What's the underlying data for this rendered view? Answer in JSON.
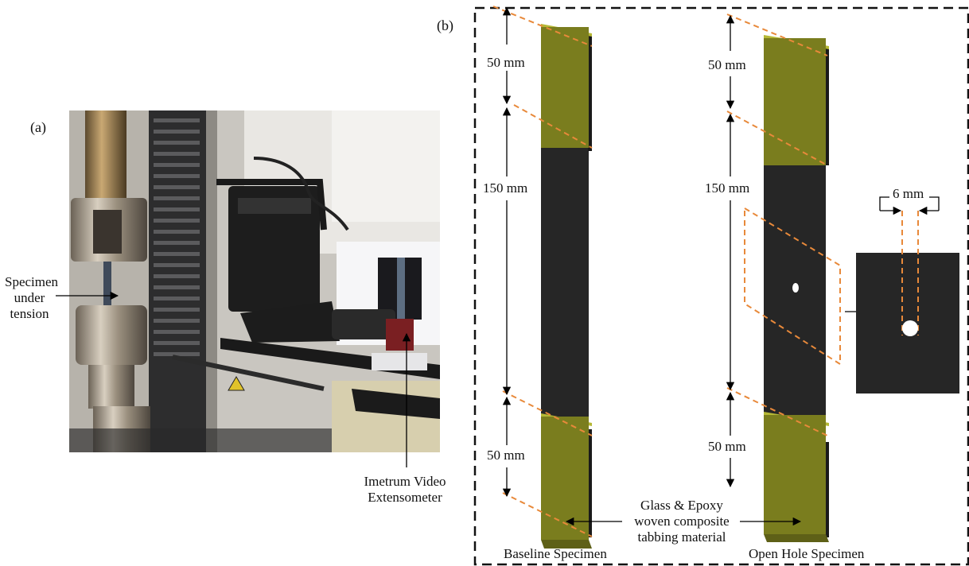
{
  "panel_a": {
    "label": "(a)",
    "annotations": {
      "specimen": [
        "Specimen",
        "under",
        "tension"
      ],
      "extensometer": [
        "Imetrum Video",
        "Extensometer"
      ]
    }
  },
  "panel_b": {
    "label": "(b)",
    "dimensions": {
      "tab_top": "50 mm",
      "gauge": "150 mm",
      "tab_bottom": "50 mm",
      "hole_diameter": "6 mm"
    },
    "tabbing_label": [
      "Glass & Epoxy",
      "woven composite",
      "tabbing material"
    ],
    "captions": {
      "baseline": "Baseline Specimen",
      "open_hole": "Open Hole Specimen"
    },
    "colors": {
      "specimen": "#262626",
      "tab": "#7a7d1e",
      "tab_edge": "#b5b835",
      "dashed_orange": "#e8893a",
      "frame": "#111111"
    }
  }
}
